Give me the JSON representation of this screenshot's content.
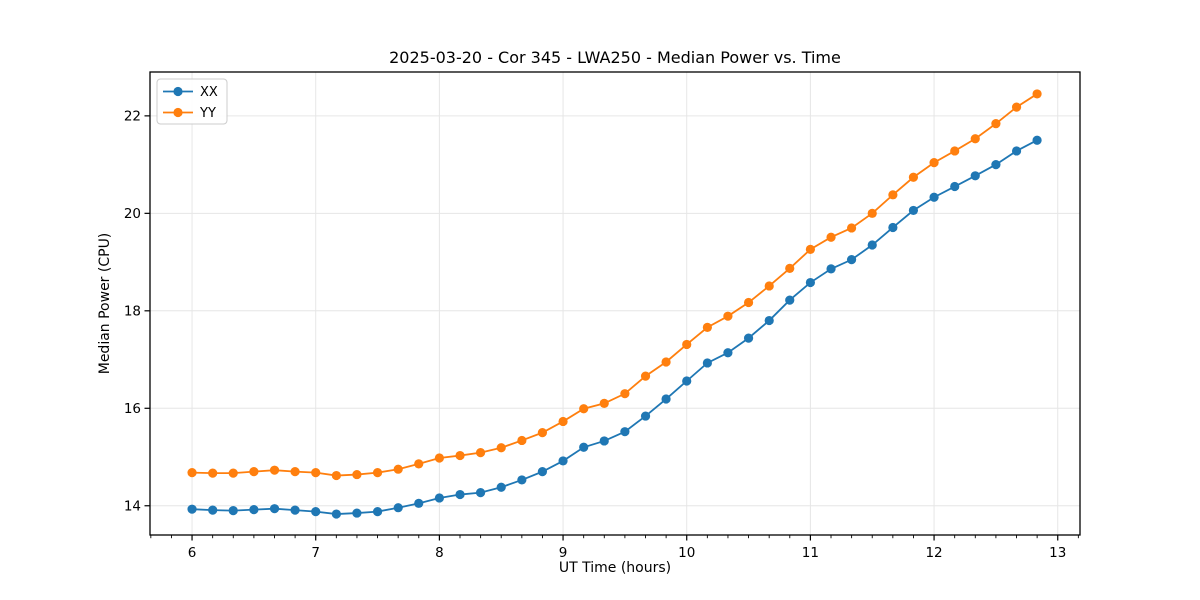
{
  "figure": {
    "background": "#ffffff",
    "text_color": "#000000",
    "grid_color": "#e6e6e6",
    "spine_color": "#000000",
    "legend_border_color": "#cccccc"
  },
  "chart_data": {
    "type": "line",
    "title": "2025-03-20 - Cor 345 - LWA250 - Median Power vs. Time",
    "xlabel": "UT Time (hours)",
    "ylabel": "Median Power (CPU)",
    "xlim": [
      5.66,
      13.18
    ],
    "ylim": [
      13.4,
      22.9
    ],
    "x_ticks": [
      6,
      7,
      8,
      9,
      10,
      11,
      12,
      13
    ],
    "y_ticks": [
      14,
      16,
      18,
      20,
      22
    ],
    "x_minor_step": 0.16667,
    "grid": true,
    "legend_position": "upper-left",
    "marker": "circle",
    "x": [
      6.0,
      6.167,
      6.333,
      6.5,
      6.667,
      6.833,
      7.0,
      7.167,
      7.333,
      7.5,
      7.667,
      7.833,
      8.0,
      8.167,
      8.333,
      8.5,
      8.667,
      8.833,
      9.0,
      9.167,
      9.333,
      9.5,
      9.667,
      9.833,
      10.0,
      10.167,
      10.333,
      10.5,
      10.667,
      10.833,
      11.0,
      11.167,
      11.333,
      11.5,
      11.667,
      11.833,
      12.0,
      12.167,
      12.333,
      12.5,
      12.667,
      12.833
    ],
    "series": [
      {
        "name": "XX",
        "color": "#1f77b4",
        "values": [
          13.93,
          13.91,
          13.9,
          13.92,
          13.94,
          13.91,
          13.88,
          13.83,
          13.85,
          13.88,
          13.96,
          14.05,
          14.16,
          14.23,
          14.27,
          14.38,
          14.53,
          14.7,
          14.92,
          15.2,
          15.33,
          15.52,
          15.84,
          16.19,
          16.56,
          16.93,
          17.14,
          17.44,
          17.8,
          18.22,
          18.58,
          18.86,
          19.05,
          19.35,
          19.71,
          20.06,
          20.33,
          20.55,
          20.77,
          21.0,
          21.28,
          21.5
        ]
      },
      {
        "name": "YY",
        "color": "#ff7f0e",
        "values": [
          14.68,
          14.67,
          14.67,
          14.7,
          14.73,
          14.7,
          14.68,
          14.62,
          14.64,
          14.68,
          14.75,
          14.86,
          14.98,
          15.03,
          15.09,
          15.19,
          15.34,
          15.5,
          15.73,
          15.99,
          16.1,
          16.3,
          16.66,
          16.95,
          17.31,
          17.66,
          17.89,
          18.17,
          18.51,
          18.87,
          19.26,
          19.51,
          19.7,
          20.0,
          20.38,
          20.74,
          21.04,
          21.28,
          21.53,
          21.84,
          22.18,
          22.45
        ]
      }
    ]
  }
}
